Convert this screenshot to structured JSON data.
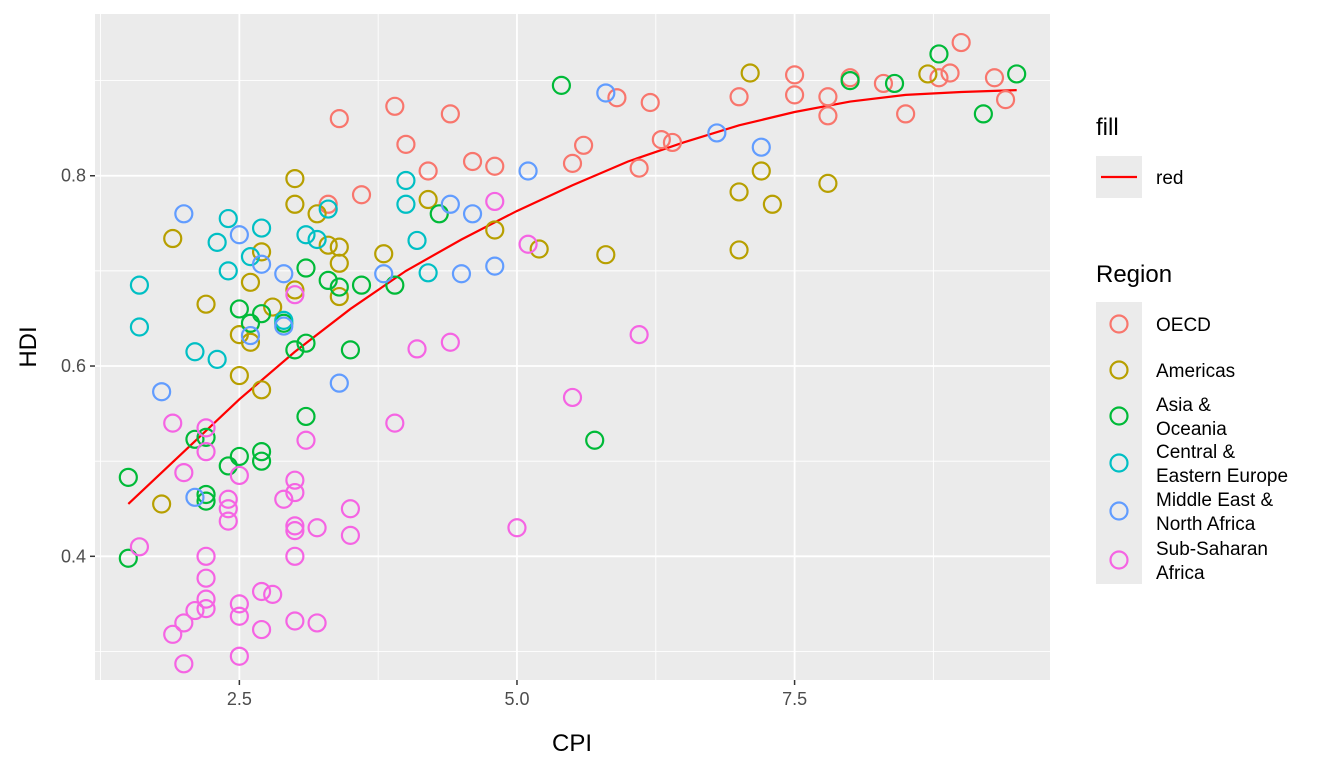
{
  "chart_data": {
    "type": "scatter",
    "title": "",
    "xlabel": "CPI",
    "ylabel": "HDI",
    "xlim": [
      1.2,
      9.8
    ],
    "ylim": [
      0.27,
      0.97
    ],
    "x_ticks": [
      2.5,
      5.0,
      7.5
    ],
    "x_tick_labels": [
      "2.5",
      "5.0",
      "7.5"
    ],
    "y_ticks": [
      0.4,
      0.6,
      0.8
    ],
    "y_tick_labels": [
      "0.4",
      "0.6",
      "0.8"
    ],
    "grid": true,
    "colors": {
      "panel_bg": "#ebebeb",
      "grid": "#ffffff",
      "trend": "#ff0000",
      "OECD": "#f8766d",
      "Americas": "#b79f00",
      "Asia & Oceania": "#00ba38",
      "Central & Eastern Europe": "#00bfc4",
      "Middle East & North Africa": "#619cff",
      "Sub-Saharan Africa": "#f564e3"
    },
    "trend_line": {
      "name": "red",
      "x": [
        1.5,
        2.0,
        2.5,
        3.0,
        3.5,
        4.0,
        4.5,
        5.0,
        5.5,
        6.0,
        6.5,
        7.0,
        7.5,
        8.0,
        8.5,
        9.0,
        9.5
      ],
      "y": [
        0.455,
        0.51,
        0.565,
        0.615,
        0.66,
        0.7,
        0.733,
        0.763,
        0.79,
        0.815,
        0.835,
        0.853,
        0.867,
        0.878,
        0.885,
        0.888,
        0.89
      ]
    },
    "legend": {
      "position": "right",
      "fill_title": "fill",
      "fill_items": [
        "red"
      ],
      "region_title": "Region",
      "region_items": [
        {
          "key": "OECD",
          "lines": [
            "OECD"
          ]
        },
        {
          "key": "Americas",
          "lines": [
            "Americas"
          ]
        },
        {
          "key": "Asia & Oceania",
          "lines": [
            "Asia &",
            "Oceania"
          ]
        },
        {
          "key": "Central & Eastern Europe",
          "lines": [
            "Central &",
            "Eastern Europe"
          ]
        },
        {
          "key": "Middle East & North Africa",
          "lines": [
            "Middle East &",
            "North Africa"
          ]
        },
        {
          "key": "Sub-Saharan Africa",
          "lines": [
            "Sub-Saharan",
            "Africa"
          ]
        }
      ]
    },
    "series": [
      {
        "name": "OECD",
        "points": [
          [
            3.4,
            0.86
          ],
          [
            3.3,
            0.77
          ],
          [
            3.6,
            0.78
          ],
          [
            3.9,
            0.873
          ],
          [
            4.0,
            0.833
          ],
          [
            4.2,
            0.805
          ],
          [
            4.4,
            0.865
          ],
          [
            4.6,
            0.815
          ],
          [
            4.8,
            0.81
          ],
          [
            5.5,
            0.813
          ],
          [
            5.6,
            0.832
          ],
          [
            5.9,
            0.882
          ],
          [
            6.2,
            0.877
          ],
          [
            6.3,
            0.838
          ],
          [
            6.4,
            0.835
          ],
          [
            6.1,
            0.808
          ],
          [
            7.0,
            0.883
          ],
          [
            7.5,
            0.885
          ],
          [
            7.5,
            0.906
          ],
          [
            7.8,
            0.863
          ],
          [
            7.8,
            0.883
          ],
          [
            8.0,
            0.903
          ],
          [
            8.3,
            0.897
          ],
          [
            8.5,
            0.865
          ],
          [
            8.8,
            0.903
          ],
          [
            8.9,
            0.908
          ],
          [
            9.0,
            0.94
          ],
          [
            9.3,
            0.903
          ],
          [
            9.4,
            0.88
          ]
        ]
      },
      {
        "name": "Americas",
        "points": [
          [
            1.8,
            0.455
          ],
          [
            1.9,
            0.734
          ],
          [
            2.2,
            0.665
          ],
          [
            2.5,
            0.59
          ],
          [
            2.5,
            0.633
          ],
          [
            2.6,
            0.625
          ],
          [
            2.6,
            0.688
          ],
          [
            2.7,
            0.575
          ],
          [
            2.7,
            0.72
          ],
          [
            2.8,
            0.662
          ],
          [
            3.0,
            0.68
          ],
          [
            3.0,
            0.77
          ],
          [
            3.0,
            0.797
          ],
          [
            3.2,
            0.76
          ],
          [
            3.3,
            0.727
          ],
          [
            3.4,
            0.725
          ],
          [
            3.4,
            0.708
          ],
          [
            3.4,
            0.673
          ],
          [
            3.8,
            0.718
          ],
          [
            4.2,
            0.775
          ],
          [
            4.8,
            0.743
          ],
          [
            5.2,
            0.723
          ],
          [
            5.8,
            0.717
          ],
          [
            7.0,
            0.722
          ],
          [
            7.0,
            0.783
          ],
          [
            7.1,
            0.908
          ],
          [
            7.2,
            0.805
          ],
          [
            7.3,
            0.77
          ],
          [
            7.8,
            0.792
          ],
          [
            8.7,
            0.907
          ]
        ]
      },
      {
        "name": "Asia & Oceania",
        "points": [
          [
            1.5,
            0.483
          ],
          [
            1.5,
            0.398
          ],
          [
            2.1,
            0.523
          ],
          [
            2.2,
            0.525
          ],
          [
            2.2,
            0.465
          ],
          [
            2.2,
            0.458
          ],
          [
            2.4,
            0.495
          ],
          [
            2.5,
            0.505
          ],
          [
            2.5,
            0.66
          ],
          [
            2.6,
            0.645
          ],
          [
            2.7,
            0.51
          ],
          [
            2.7,
            0.5
          ],
          [
            2.7,
            0.655
          ],
          [
            2.9,
            0.645
          ],
          [
            3.0,
            0.617
          ],
          [
            3.1,
            0.624
          ],
          [
            3.1,
            0.703
          ],
          [
            3.1,
            0.547
          ],
          [
            3.3,
            0.69
          ],
          [
            3.4,
            0.683
          ],
          [
            3.5,
            0.617
          ],
          [
            3.6,
            0.685
          ],
          [
            3.9,
            0.685
          ],
          [
            4.3,
            0.76
          ],
          [
            5.4,
            0.895
          ],
          [
            5.7,
            0.522
          ],
          [
            8.0,
            0.9
          ],
          [
            8.4,
            0.897
          ],
          [
            8.8,
            0.928
          ],
          [
            9.2,
            0.865
          ],
          [
            9.5,
            0.907
          ]
        ]
      },
      {
        "name": "Central & Eastern Europe",
        "points": [
          [
            1.6,
            0.685
          ],
          [
            1.6,
            0.641
          ],
          [
            2.1,
            0.615
          ],
          [
            2.3,
            0.607
          ],
          [
            2.3,
            0.73
          ],
          [
            2.4,
            0.755
          ],
          [
            2.4,
            0.7
          ],
          [
            2.6,
            0.715
          ],
          [
            2.7,
            0.745
          ],
          [
            2.9,
            0.648
          ],
          [
            3.1,
            0.738
          ],
          [
            3.2,
            0.733
          ],
          [
            3.3,
            0.765
          ],
          [
            4.0,
            0.795
          ],
          [
            4.0,
            0.77
          ],
          [
            4.1,
            0.732
          ],
          [
            4.2,
            0.698
          ]
        ]
      },
      {
        "name": "Middle East & North Africa",
        "points": [
          [
            1.8,
            0.573
          ],
          [
            2.0,
            0.76
          ],
          [
            2.1,
            0.462
          ],
          [
            2.5,
            0.738
          ],
          [
            2.6,
            0.632
          ],
          [
            2.7,
            0.707
          ],
          [
            2.9,
            0.697
          ],
          [
            2.9,
            0.642
          ],
          [
            3.4,
            0.582
          ],
          [
            3.8,
            0.697
          ],
          [
            4.4,
            0.77
          ],
          [
            4.5,
            0.697
          ],
          [
            4.6,
            0.76
          ],
          [
            4.8,
            0.705
          ],
          [
            5.1,
            0.805
          ],
          [
            5.8,
            0.887
          ],
          [
            6.8,
            0.845
          ],
          [
            7.2,
            0.83
          ]
        ]
      },
      {
        "name": "Sub-Saharan Africa",
        "points": [
          [
            1.6,
            0.41
          ],
          [
            1.9,
            0.54
          ],
          [
            1.9,
            0.318
          ],
          [
            2.0,
            0.488
          ],
          [
            2.0,
            0.33
          ],
          [
            2.0,
            0.287
          ],
          [
            2.1,
            0.343
          ],
          [
            2.2,
            0.535
          ],
          [
            2.2,
            0.51
          ],
          [
            2.2,
            0.4
          ],
          [
            2.2,
            0.377
          ],
          [
            2.2,
            0.345
          ],
          [
            2.2,
            0.355
          ],
          [
            2.4,
            0.46
          ],
          [
            2.4,
            0.45
          ],
          [
            2.4,
            0.437
          ],
          [
            2.5,
            0.485
          ],
          [
            2.5,
            0.35
          ],
          [
            2.5,
            0.337
          ],
          [
            2.5,
            0.295
          ],
          [
            2.7,
            0.363
          ],
          [
            2.7,
            0.323
          ],
          [
            2.8,
            0.36
          ],
          [
            2.9,
            0.46
          ],
          [
            3.0,
            0.48
          ],
          [
            3.0,
            0.467
          ],
          [
            3.0,
            0.432
          ],
          [
            3.0,
            0.427
          ],
          [
            3.0,
            0.4
          ],
          [
            3.0,
            0.332
          ],
          [
            3.0,
            0.675
          ],
          [
            3.1,
            0.522
          ],
          [
            3.2,
            0.43
          ],
          [
            3.2,
            0.33
          ],
          [
            3.5,
            0.45
          ],
          [
            3.5,
            0.422
          ],
          [
            3.9,
            0.54
          ],
          [
            4.1,
            0.618
          ],
          [
            4.4,
            0.625
          ],
          [
            4.8,
            0.773
          ],
          [
            5.0,
            0.43
          ],
          [
            5.1,
            0.728
          ],
          [
            5.5,
            0.567
          ],
          [
            6.1,
            0.633
          ]
        ]
      }
    ]
  }
}
